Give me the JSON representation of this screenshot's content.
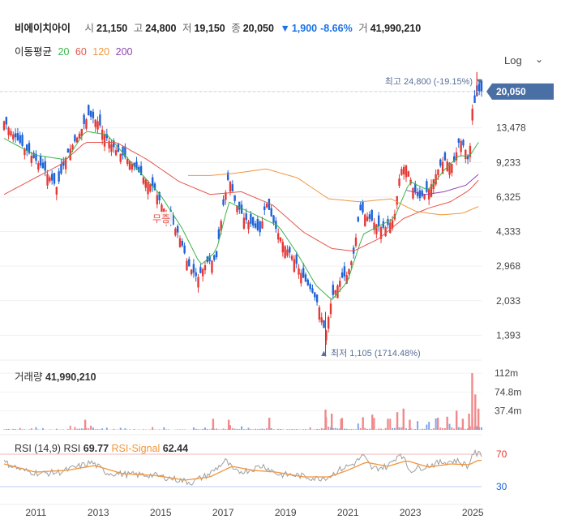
{
  "header": {
    "name": "비에이치아이",
    "open_label": "시",
    "open": "21,150",
    "high_label": "고",
    "high": "24,800",
    "low_label": "저",
    "low": "19,150",
    "close_label": "종",
    "close": "20,050",
    "change_arrow": "▼",
    "change": "1,900",
    "change_pct": "-8.66%",
    "vol_label": "거",
    "volume": "41,990,210"
  },
  "ma_legend": {
    "label": "이동평균",
    "periods": [
      "20",
      "60",
      "120",
      "200"
    ],
    "colors": [
      "#3cb44b",
      "#e6554c",
      "#f0953c",
      "#8e44ad"
    ]
  },
  "scale_button": "Log",
  "price_panel": {
    "y_ticks": [
      "20,050",
      "13,478",
      "9,233",
      "6,325",
      "4,333",
      "2,968",
      "2,033",
      "1,393"
    ],
    "y_tick_values": [
      20050,
      13478,
      9233,
      6325,
      4333,
      2968,
      2033,
      1393
    ],
    "current_price_label": "20,050",
    "high_marker": "최고 24,800 (-19.15%) ▼",
    "low_marker": "▲ 최저 1,105 (1714.48%)",
    "event_label": "무증"
  },
  "volume_panel": {
    "label": "거래량",
    "value": "41,990,210",
    "y_ticks": [
      "112m",
      "74.8m",
      "37.4m"
    ],
    "y_tick_values": [
      112,
      74.8,
      37.4
    ]
  },
  "rsi_panel": {
    "params": "RSI (14,9)",
    "rsi_label": "RSI",
    "rsi_value": "69.77",
    "signal_label": "RSI-Signal",
    "signal_value": "62.44",
    "levels": [
      "70",
      "30"
    ]
  },
  "x_axis": {
    "labels": [
      "2011",
      "2013",
      "2015",
      "2017",
      "2019",
      "2021",
      "2023",
      "2025"
    ]
  },
  "colors": {
    "up": "#e53935",
    "down": "#1e63d8",
    "ma20": "#3cb44b",
    "ma60": "#e6554c",
    "ma120": "#f0953c",
    "ma200": "#8e44ad",
    "rsi": "#9e9e9e",
    "signal": "#f0953c",
    "price_tag": "#4a6fa5"
  },
  "chart_data": {
    "type": "candlestick",
    "scale": "log",
    "x_range": [
      2010.0,
      2025.3
    ],
    "ylim": [
      1100,
      25000
    ],
    "grid": true,
    "legend": "top-left",
    "close_series": [
      [
        2010.0,
        14500
      ],
      [
        2010.3,
        12500
      ],
      [
        2010.6,
        11000
      ],
      [
        2011.0,
        9500
      ],
      [
        2011.3,
        8500
      ],
      [
        2011.7,
        7000
      ],
      [
        2012.0,
        10000
      ],
      [
        2012.4,
        12500
      ],
      [
        2012.7,
        15500
      ],
      [
        2013.0,
        14500
      ],
      [
        2013.3,
        12000
      ],
      [
        2013.6,
        10500
      ],
      [
        2014.0,
        9500
      ],
      [
        2014.4,
        8000
      ],
      [
        2014.8,
        7000
      ],
      [
        2015.0,
        6000
      ],
      [
        2015.3,
        5000
      ],
      [
        2015.6,
        4200
      ],
      [
        2015.9,
        3000
      ],
      [
        2016.2,
        2600
      ],
      [
        2016.5,
        3100
      ],
      [
        2016.8,
        3200
      ],
      [
        2017.0,
        5500
      ],
      [
        2017.2,
        8000
      ],
      [
        2017.4,
        6000
      ],
      [
        2017.7,
        5000
      ],
      [
        2018.0,
        4600
      ],
      [
        2018.2,
        4300
      ],
      [
        2018.4,
        6000
      ],
      [
        2018.7,
        4500
      ],
      [
        2019.0,
        3700
      ],
      [
        2019.3,
        3200
      ],
      [
        2019.6,
        2600
      ],
      [
        2019.9,
        2200
      ],
      [
        2020.1,
        1900
      ],
      [
        2020.3,
        1400
      ],
      [
        2020.5,
        2100
      ],
      [
        2020.8,
        2600
      ],
      [
        2021.0,
        2700
      ],
      [
        2021.2,
        3400
      ],
      [
        2021.4,
        5500
      ],
      [
        2021.7,
        5000
      ],
      [
        2022.0,
        4600
      ],
      [
        2022.2,
        4500
      ],
      [
        2022.5,
        5000
      ],
      [
        2022.7,
        8500
      ],
      [
        2022.9,
        9000
      ],
      [
        2023.1,
        7000
      ],
      [
        2023.3,
        6200
      ],
      [
        2023.6,
        6800
      ],
      [
        2023.9,
        8500
      ],
      [
        2024.1,
        9500
      ],
      [
        2024.4,
        9000
      ],
      [
        2024.6,
        12000
      ],
      [
        2024.8,
        10500
      ],
      [
        2024.9,
        9000
      ],
      [
        2025.0,
        16500
      ],
      [
        2025.1,
        18000
      ],
      [
        2025.2,
        20050
      ]
    ],
    "ma20": [
      [
        2010.0,
        12000
      ],
      [
        2011.0,
        10000
      ],
      [
        2012.0,
        9500
      ],
      [
        2012.6,
        13000
      ],
      [
        2013.3,
        12500
      ],
      [
        2014.0,
        9500
      ],
      [
        2015.0,
        6500
      ],
      [
        2015.7,
        4500
      ],
      [
        2016.3,
        3000
      ],
      [
        2016.8,
        3500
      ],
      [
        2017.2,
        6000
      ],
      [
        2017.7,
        5500
      ],
      [
        2018.3,
        5000
      ],
      [
        2018.8,
        4600
      ],
      [
        2019.4,
        3400
      ],
      [
        2020.0,
        2400
      ],
      [
        2020.5,
        2050
      ],
      [
        2021.0,
        2500
      ],
      [
        2021.5,
        4200
      ],
      [
        2022.0,
        4600
      ],
      [
        2022.5,
        5000
      ],
      [
        2023.0,
        7500
      ],
      [
        2023.6,
        6800
      ],
      [
        2024.1,
        8500
      ],
      [
        2024.6,
        10000
      ],
      [
        2024.9,
        9800
      ],
      [
        2025.2,
        11500
      ]
    ],
    "ma60": [
      [
        2010.0,
        6500
      ],
      [
        2011.0,
        7800
      ],
      [
        2011.8,
        9000
      ],
      [
        2012.6,
        11500
      ],
      [
        2013.6,
        11500
      ],
      [
        2014.6,
        9500
      ],
      [
        2015.6,
        7500
      ],
      [
        2016.6,
        6500
      ],
      [
        2017.6,
        6700
      ],
      [
        2018.6,
        5800
      ],
      [
        2019.6,
        4300
      ],
      [
        2020.5,
        3600
      ],
      [
        2021.2,
        3500
      ],
      [
        2022.0,
        4000
      ],
      [
        2022.8,
        5000
      ],
      [
        2023.6,
        5600
      ],
      [
        2024.3,
        6000
      ],
      [
        2024.9,
        6800
      ],
      [
        2025.2,
        7600
      ]
    ],
    "ma120": [
      [
        2015.9,
        8000
      ],
      [
        2016.6,
        8000
      ],
      [
        2017.4,
        8200
      ],
      [
        2018.4,
        8600
      ],
      [
        2019.4,
        7800
      ],
      [
        2020.4,
        6200
      ],
      [
        2021.4,
        6000
      ],
      [
        2022.4,
        6200
      ],
      [
        2023.2,
        5400
      ],
      [
        2024.0,
        5200
      ],
      [
        2024.7,
        5300
      ],
      [
        2025.2,
        5700
      ]
    ],
    "ma200": [
      [
        2022.9,
        6800
      ],
      [
        2023.5,
        6500
      ],
      [
        2024.1,
        6700
      ],
      [
        2024.8,
        7200
      ],
      [
        2025.2,
        8100
      ]
    ],
    "volume_m": [
      [
        2010.0,
        14
      ],
      [
        2010.5,
        6
      ],
      [
        2011.0,
        5
      ],
      [
        2011.5,
        4
      ],
      [
        2012.0,
        5
      ],
      [
        2012.6,
        20
      ],
      [
        2013.0,
        8
      ],
      [
        2013.6,
        4
      ],
      [
        2014.3,
        5
      ],
      [
        2014.8,
        6
      ],
      [
        2015.5,
        5
      ],
      [
        2015.9,
        4
      ],
      [
        2016.4,
        10
      ],
      [
        2016.7,
        22
      ],
      [
        2017.0,
        12
      ],
      [
        2017.2,
        20
      ],
      [
        2017.6,
        6
      ],
      [
        2018.2,
        14
      ],
      [
        2018.5,
        24
      ],
      [
        2018.9,
        4
      ],
      [
        2019.3,
        14
      ],
      [
        2019.8,
        5
      ],
      [
        2020.0,
        8
      ],
      [
        2020.3,
        40
      ],
      [
        2020.5,
        32
      ],
      [
        2020.8,
        22
      ],
      [
        2021.1,
        10
      ],
      [
        2021.5,
        25
      ],
      [
        2021.8,
        30
      ],
      [
        2022.1,
        12
      ],
      [
        2022.3,
        22
      ],
      [
        2022.6,
        35
      ],
      [
        2022.8,
        42
      ],
      [
        2023.0,
        20
      ],
      [
        2023.3,
        18
      ],
      [
        2023.6,
        14
      ],
      [
        2023.9,
        24
      ],
      [
        2024.2,
        26
      ],
      [
        2024.5,
        38
      ],
      [
        2024.7,
        22
      ],
      [
        2024.9,
        32
      ],
      [
        2025.0,
        112
      ],
      [
        2025.1,
        70
      ],
      [
        2025.2,
        42
      ]
    ],
    "rsi": [
      [
        2010.0,
        60
      ],
      [
        2010.6,
        50
      ],
      [
        2011.2,
        46
      ],
      [
        2011.8,
        48
      ],
      [
        2012.4,
        55
      ],
      [
        2012.8,
        60
      ],
      [
        2013.3,
        47
      ],
      [
        2014.0,
        45
      ],
      [
        2014.8,
        44
      ],
      [
        2015.4,
        40
      ],
      [
        2016.0,
        35
      ],
      [
        2016.6,
        46
      ],
      [
        2017.1,
        62
      ],
      [
        2017.4,
        48
      ],
      [
        2017.8,
        50
      ],
      [
        2018.3,
        56
      ],
      [
        2018.8,
        45
      ],
      [
        2019.4,
        44
      ],
      [
        2020.0,
        40
      ],
      [
        2020.4,
        42
      ],
      [
        2020.8,
        52
      ],
      [
        2021.2,
        58
      ],
      [
        2021.5,
        68
      ],
      [
        2021.8,
        52
      ],
      [
        2022.3,
        55
      ],
      [
        2022.7,
        72
      ],
      [
        2023.0,
        50
      ],
      [
        2023.5,
        55
      ],
      [
        2024.0,
        60
      ],
      [
        2024.5,
        62
      ],
      [
        2024.9,
        55
      ],
      [
        2025.0,
        72
      ],
      [
        2025.2,
        69.77
      ]
    ],
    "rsi_signal": [
      [
        2010.0,
        58
      ],
      [
        2011.0,
        48
      ],
      [
        2012.0,
        50
      ],
      [
        2012.9,
        56
      ],
      [
        2013.8,
        46
      ],
      [
        2014.8,
        44
      ],
      [
        2015.8,
        38
      ],
      [
        2016.6,
        42
      ],
      [
        2017.3,
        55
      ],
      [
        2018.0,
        50
      ],
      [
        2018.7,
        48
      ],
      [
        2019.6,
        42
      ],
      [
        2020.4,
        42
      ],
      [
        2021.0,
        50
      ],
      [
        2021.6,
        60
      ],
      [
        2022.3,
        55
      ],
      [
        2022.9,
        62
      ],
      [
        2023.6,
        54
      ],
      [
        2024.3,
        58
      ],
      [
        2024.9,
        57
      ],
      [
        2025.2,
        62.44
      ]
    ]
  }
}
